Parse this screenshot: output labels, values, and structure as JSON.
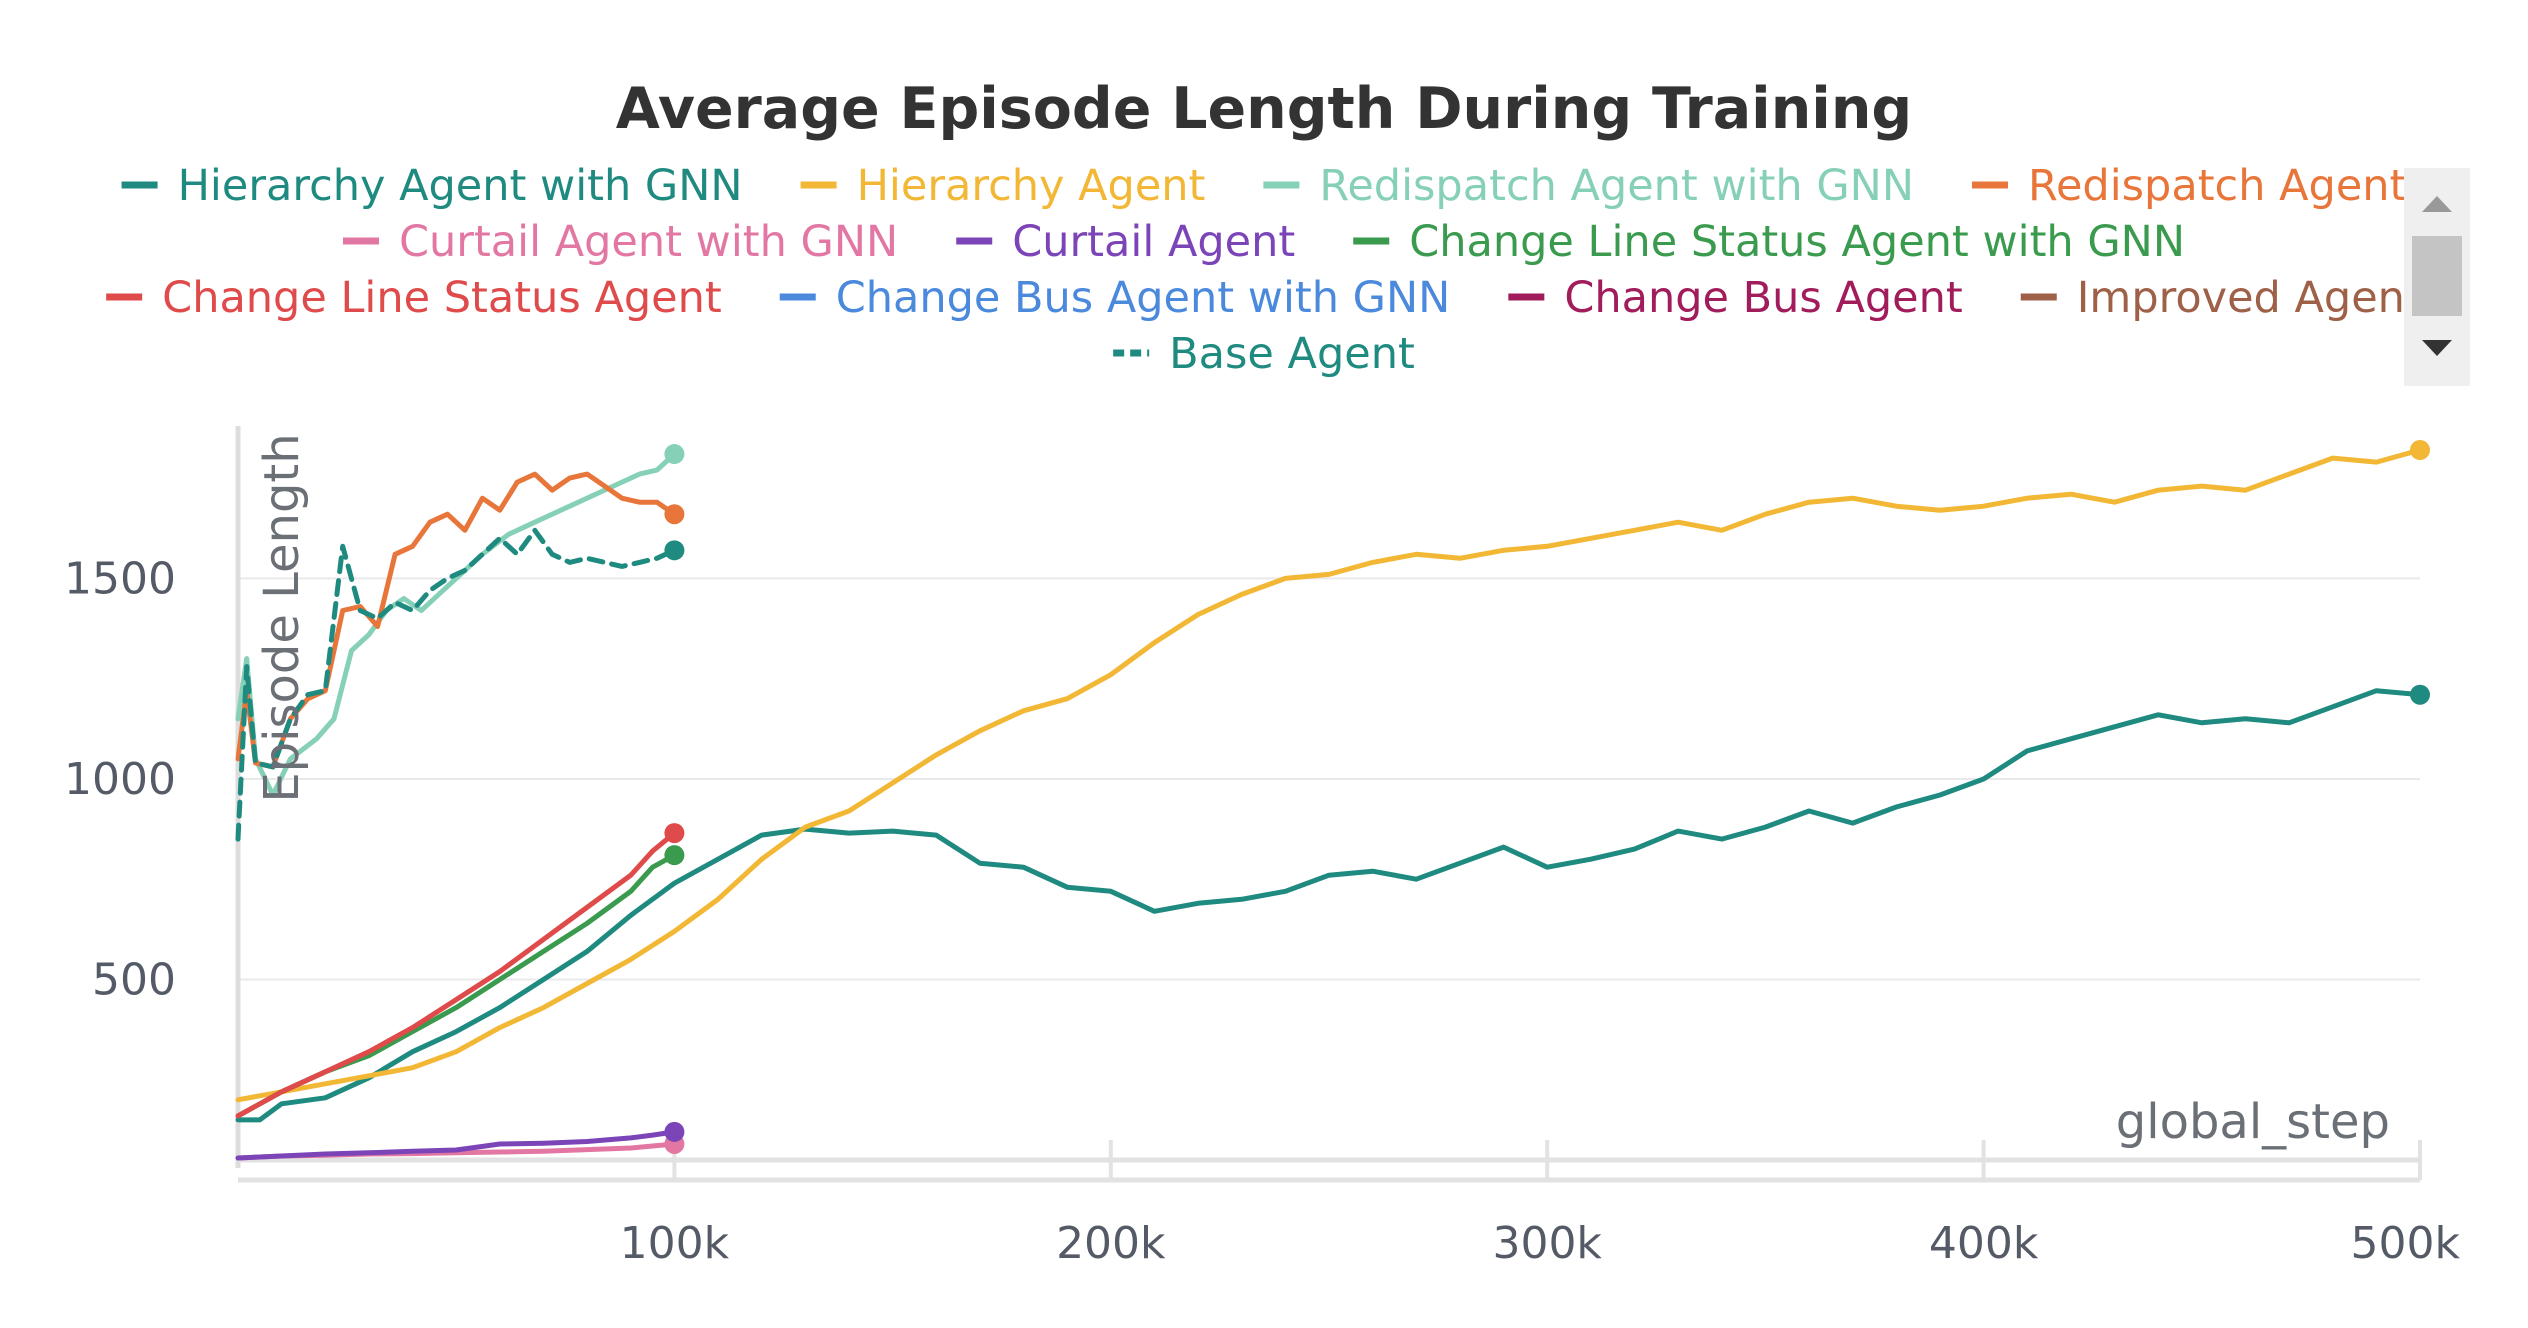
{
  "chart_data": {
    "type": "line",
    "title": "Average Episode Length During Training",
    "xlabel": "global_step",
    "ylabel": "Episode Length",
    "xlim": [
      0,
      500000
    ],
    "ylim": [
      50,
      1860
    ],
    "x_ticks": [
      {
        "value": 100000,
        "label": "100k"
      },
      {
        "value": 200000,
        "label": "200k"
      },
      {
        "value": 300000,
        "label": "300k"
      },
      {
        "value": 400000,
        "label": "400k"
      },
      {
        "value": 500000,
        "label": "500k"
      }
    ],
    "y_ticks": [
      {
        "value": 500,
        "label": "500"
      },
      {
        "value": 1000,
        "label": "1000"
      },
      {
        "value": 1500,
        "label": "1500"
      }
    ],
    "grid": true,
    "legend_position": "top",
    "series": [
      {
        "name": "Hierarchy Agent with GNN",
        "color": "#1f8a80",
        "dashed": false,
        "end_marker": true,
        "points": [
          [
            0,
            150
          ],
          [
            5000,
            150
          ],
          [
            10000,
            190
          ],
          [
            20000,
            205
          ],
          [
            30000,
            255
          ],
          [
            40000,
            320
          ],
          [
            50000,
            370
          ],
          [
            60000,
            430
          ],
          [
            70000,
            500
          ],
          [
            80000,
            570
          ],
          [
            90000,
            660
          ],
          [
            100000,
            740
          ],
          [
            110000,
            800
          ],
          [
            120000,
            860
          ],
          [
            130000,
            875
          ],
          [
            140000,
            865
          ],
          [
            150000,
            870
          ],
          [
            160000,
            860
          ],
          [
            170000,
            790
          ],
          [
            180000,
            780
          ],
          [
            190000,
            730
          ],
          [
            200000,
            720
          ],
          [
            210000,
            670
          ],
          [
            220000,
            690
          ],
          [
            230000,
            700
          ],
          [
            240000,
            720
          ],
          [
            250000,
            760
          ],
          [
            260000,
            770
          ],
          [
            270000,
            750
          ],
          [
            280000,
            790
          ],
          [
            290000,
            830
          ],
          [
            300000,
            780
          ],
          [
            310000,
            800
          ],
          [
            320000,
            825
          ],
          [
            330000,
            870
          ],
          [
            340000,
            850
          ],
          [
            350000,
            880
          ],
          [
            360000,
            920
          ],
          [
            370000,
            890
          ],
          [
            380000,
            930
          ],
          [
            390000,
            960
          ],
          [
            400000,
            1000
          ],
          [
            410000,
            1070
          ],
          [
            420000,
            1100
          ],
          [
            430000,
            1130
          ],
          [
            440000,
            1160
          ],
          [
            450000,
            1140
          ],
          [
            460000,
            1150
          ],
          [
            470000,
            1140
          ],
          [
            480000,
            1180
          ],
          [
            490000,
            1220
          ],
          [
            500000,
            1210
          ]
        ]
      },
      {
        "name": "Hierarchy Agent",
        "color": "#f2b735",
        "dashed": false,
        "end_marker": true,
        "points": [
          [
            0,
            200
          ],
          [
            10000,
            220
          ],
          [
            20000,
            240
          ],
          [
            30000,
            260
          ],
          [
            40000,
            280
          ],
          [
            50000,
            320
          ],
          [
            60000,
            380
          ],
          [
            70000,
            430
          ],
          [
            80000,
            490
          ],
          [
            90000,
            550
          ],
          [
            100000,
            620
          ],
          [
            110000,
            700
          ],
          [
            120000,
            800
          ],
          [
            130000,
            880
          ],
          [
            140000,
            920
          ],
          [
            150000,
            990
          ],
          [
            160000,
            1060
          ],
          [
            170000,
            1120
          ],
          [
            180000,
            1170
          ],
          [
            190000,
            1200
          ],
          [
            200000,
            1260
          ],
          [
            210000,
            1340
          ],
          [
            220000,
            1410
          ],
          [
            230000,
            1460
          ],
          [
            240000,
            1500
          ],
          [
            250000,
            1510
          ],
          [
            260000,
            1540
          ],
          [
            270000,
            1560
          ],
          [
            280000,
            1550
          ],
          [
            290000,
            1570
          ],
          [
            300000,
            1580
          ],
          [
            310000,
            1600
          ],
          [
            320000,
            1620
          ],
          [
            330000,
            1640
          ],
          [
            340000,
            1620
          ],
          [
            350000,
            1660
          ],
          [
            360000,
            1690
          ],
          [
            370000,
            1700
          ],
          [
            380000,
            1680
          ],
          [
            390000,
            1670
          ],
          [
            400000,
            1680
          ],
          [
            410000,
            1700
          ],
          [
            420000,
            1710
          ],
          [
            430000,
            1690
          ],
          [
            440000,
            1720
          ],
          [
            450000,
            1730
          ],
          [
            460000,
            1720
          ],
          [
            470000,
            1760
          ],
          [
            480000,
            1800
          ],
          [
            490000,
            1790
          ],
          [
            500000,
            1820
          ]
        ]
      },
      {
        "name": "Redispatch Agent with GNN",
        "color": "#86d0b8",
        "dashed": false,
        "end_marker": true,
        "points": [
          [
            0,
            1150
          ],
          [
            2000,
            1300
          ],
          [
            4000,
            1050
          ],
          [
            8000,
            960
          ],
          [
            12000,
            1050
          ],
          [
            18000,
            1100
          ],
          [
            22000,
            1150
          ],
          [
            26000,
            1320
          ],
          [
            30000,
            1360
          ],
          [
            34000,
            1420
          ],
          [
            38000,
            1450
          ],
          [
            42000,
            1420
          ],
          [
            46000,
            1460
          ],
          [
            50000,
            1500
          ],
          [
            56000,
            1560
          ],
          [
            62000,
            1610
          ],
          [
            68000,
            1640
          ],
          [
            74000,
            1670
          ],
          [
            80000,
            1700
          ],
          [
            86000,
            1730
          ],
          [
            92000,
            1760
          ],
          [
            96000,
            1770
          ],
          [
            100000,
            1810
          ]
        ]
      },
      {
        "name": "Redispatch Agent",
        "color": "#e8763a",
        "dashed": false,
        "end_marker": true,
        "points": [
          [
            0,
            1050
          ],
          [
            2000,
            1220
          ],
          [
            4000,
            1040
          ],
          [
            8000,
            1030
          ],
          [
            12000,
            1150
          ],
          [
            16000,
            1200
          ],
          [
            20000,
            1220
          ],
          [
            24000,
            1420
          ],
          [
            28000,
            1430
          ],
          [
            32000,
            1380
          ],
          [
            36000,
            1560
          ],
          [
            40000,
            1580
          ],
          [
            44000,
            1640
          ],
          [
            48000,
            1660
          ],
          [
            52000,
            1620
          ],
          [
            56000,
            1700
          ],
          [
            60000,
            1670
          ],
          [
            64000,
            1740
          ],
          [
            68000,
            1760
          ],
          [
            72000,
            1720
          ],
          [
            76000,
            1750
          ],
          [
            80000,
            1760
          ],
          [
            84000,
            1730
          ],
          [
            88000,
            1700
          ],
          [
            92000,
            1690
          ],
          [
            96000,
            1690
          ],
          [
            100000,
            1660
          ]
        ]
      },
      {
        "name": "Curtail Agent with GNN",
        "color": "#e377a3",
        "dashed": false,
        "end_marker": true,
        "points": [
          [
            0,
            55
          ],
          [
            10000,
            60
          ],
          [
            20000,
            62
          ],
          [
            30000,
            65
          ],
          [
            40000,
            66
          ],
          [
            50000,
            68
          ],
          [
            60000,
            70
          ],
          [
            70000,
            72
          ],
          [
            80000,
            76
          ],
          [
            90000,
            80
          ],
          [
            95000,
            85
          ],
          [
            100000,
            90
          ]
        ]
      },
      {
        "name": "Curtail Agent",
        "color": "#7b45b8",
        "dashed": false,
        "end_marker": true,
        "points": [
          [
            0,
            55
          ],
          [
            10000,
            60
          ],
          [
            20000,
            65
          ],
          [
            30000,
            68
          ],
          [
            40000,
            72
          ],
          [
            50000,
            75
          ],
          [
            60000,
            90
          ],
          [
            70000,
            92
          ],
          [
            80000,
            96
          ],
          [
            90000,
            105
          ],
          [
            95000,
            112
          ],
          [
            100000,
            120
          ]
        ]
      },
      {
        "name": "Change Line Status Agent with GNN",
        "color": "#3a9a4e",
        "dashed": false,
        "end_marker": true,
        "points": [
          [
            0,
            160
          ],
          [
            10000,
            220
          ],
          [
            20000,
            270
          ],
          [
            30000,
            310
          ],
          [
            40000,
            370
          ],
          [
            50000,
            430
          ],
          [
            60000,
            500
          ],
          [
            70000,
            570
          ],
          [
            80000,
            640
          ],
          [
            90000,
            720
          ],
          [
            95000,
            780
          ],
          [
            100000,
            810
          ]
        ]
      },
      {
        "name": "Change Line Status Agent",
        "color": "#df4a4a",
        "dashed": false,
        "end_marker": true,
        "points": [
          [
            0,
            160
          ],
          [
            10000,
            220
          ],
          [
            20000,
            270
          ],
          [
            30000,
            320
          ],
          [
            40000,
            380
          ],
          [
            50000,
            450
          ],
          [
            60000,
            520
          ],
          [
            70000,
            600
          ],
          [
            80000,
            680
          ],
          [
            90000,
            760
          ],
          [
            95000,
            820
          ],
          [
            100000,
            865
          ]
        ]
      },
      {
        "name": "Change Bus Agent with GNN",
        "color": "#4a89dc",
        "dashed": false,
        "end_marker": false,
        "points": []
      },
      {
        "name": "Change Bus Agent",
        "color": "#a01c5b",
        "dashed": false,
        "end_marker": false,
        "points": []
      },
      {
        "name": "Improved Agent",
        "color": "#9e6148",
        "dashed": false,
        "end_marker": false,
        "points": []
      },
      {
        "name": "Base Agent",
        "color": "#1f8a80",
        "dashed": true,
        "end_marker": true,
        "points": [
          [
            0,
            850
          ],
          [
            2000,
            1280
          ],
          [
            4000,
            1040
          ],
          [
            8000,
            1030
          ],
          [
            12000,
            1150
          ],
          [
            16000,
            1210
          ],
          [
            20000,
            1220
          ],
          [
            24000,
            1580
          ],
          [
            28000,
            1420
          ],
          [
            32000,
            1400
          ],
          [
            36000,
            1440
          ],
          [
            40000,
            1420
          ],
          [
            44000,
            1470
          ],
          [
            48000,
            1500
          ],
          [
            52000,
            1520
          ],
          [
            56000,
            1560
          ],
          [
            60000,
            1600
          ],
          [
            64000,
            1560
          ],
          [
            68000,
            1620
          ],
          [
            72000,
            1560
          ],
          [
            76000,
            1540
          ],
          [
            80000,
            1550
          ],
          [
            84000,
            1540
          ],
          [
            88000,
            1530
          ],
          [
            92000,
            1540
          ],
          [
            96000,
            1550
          ],
          [
            100000,
            1570
          ]
        ]
      }
    ]
  }
}
